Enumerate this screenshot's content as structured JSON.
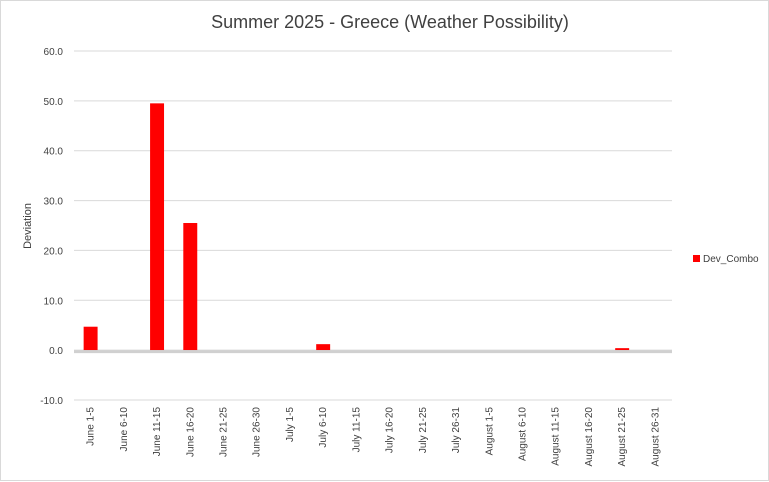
{
  "chart_data": {
    "type": "bar",
    "title": "Summer 2025 - Greece (Weather Possibility)",
    "xlabel": "",
    "ylabel": "Deviation",
    "ylim": [
      -10,
      60
    ],
    "yticks": [
      60,
      50,
      40,
      30,
      20,
      10,
      0,
      -10
    ],
    "ytick_labels": [
      "60.0",
      "50.0",
      "40.0",
      "30.0",
      "20.0",
      "10.0",
      "0.0",
      "-10.0"
    ],
    "grid": true,
    "legend_position": "right",
    "categories": [
      "June 1-5",
      "June 6-10",
      "June 11-15",
      "June 16-20",
      "June 21-25",
      "June 26-30",
      "July 1-5",
      "July 6-10",
      "July 11-15",
      "July 16-20",
      "July 21-25",
      "July 26-31",
      "August 1-5",
      "August 6-10",
      "August 11-15",
      "August 16-20",
      "August 21-25",
      "August 26-31"
    ],
    "series": [
      {
        "name": "Dev_Combo",
        "color": "#ff0000",
        "values": [
          4.7,
          0,
          49.5,
          25.5,
          0,
          0,
          0,
          1.2,
          0,
          0,
          0,
          0,
          0,
          0,
          0,
          0,
          0.4,
          0
        ]
      }
    ]
  }
}
